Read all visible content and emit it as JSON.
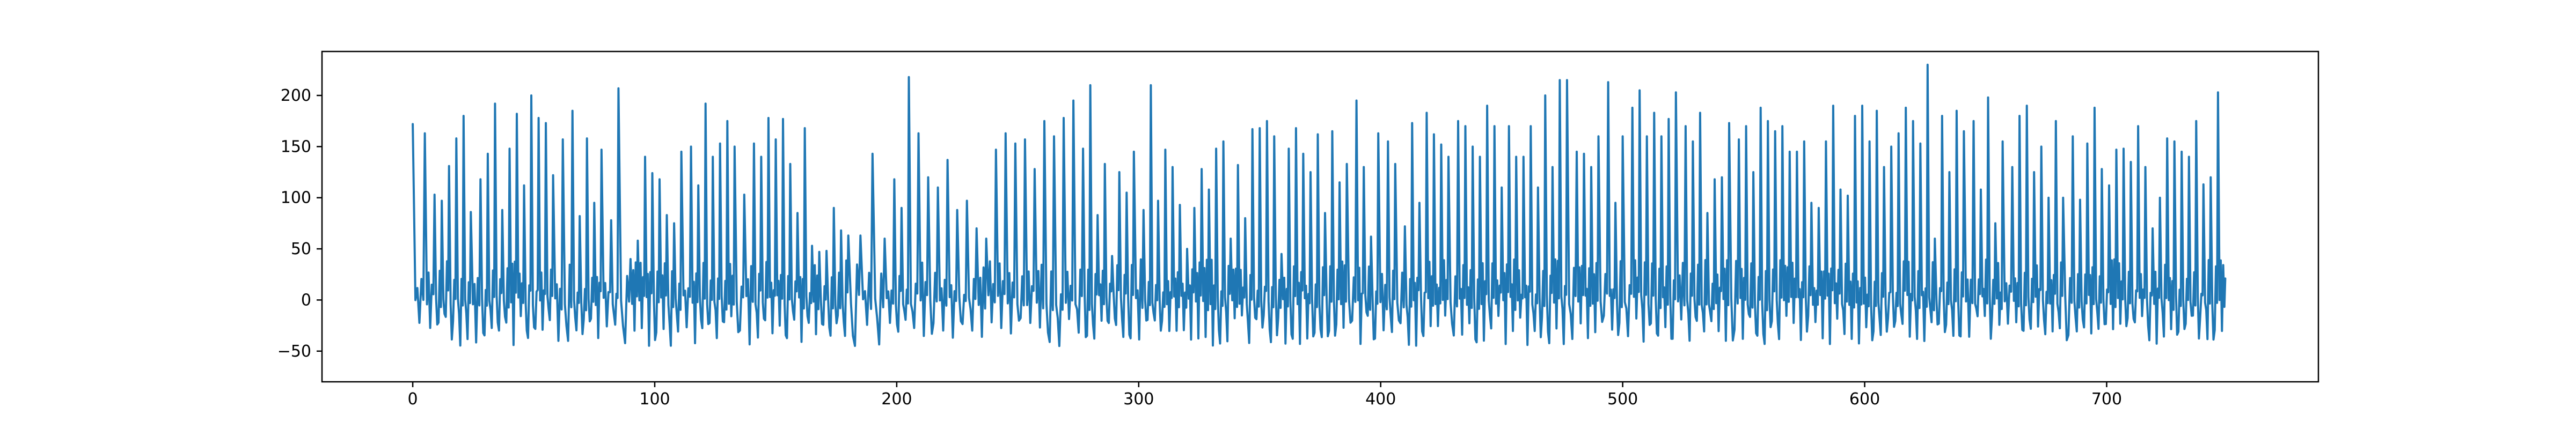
{
  "chart_data": {
    "type": "line",
    "title": "",
    "xlabel": "",
    "ylabel": "",
    "xlim": [
      -37.5,
      787.5
    ],
    "ylim": [
      -80,
      243
    ],
    "x_ticks": [
      0,
      100,
      200,
      300,
      400,
      500,
      600,
      700
    ],
    "y_ticks": [
      -50,
      0,
      50,
      100,
      150,
      200
    ],
    "x_tick_labels": [
      "0",
      "100",
      "200",
      "300",
      "400",
      "500",
      "600",
      "700"
    ],
    "y_tick_labels": [
      "−50",
      "0",
      "50",
      "100",
      "150",
      "200"
    ],
    "grid": false,
    "legend": "none",
    "series": [
      {
        "color": "#1f77b4",
        "peaks": [
          [
            0,
            172
          ],
          [
            5,
            163
          ],
          [
            9,
            103
          ],
          [
            12,
            97
          ],
          [
            15,
            131
          ],
          [
            18,
            158
          ],
          [
            21,
            180
          ],
          [
            24,
            86
          ],
          [
            28,
            118
          ],
          [
            31,
            143
          ],
          [
            34,
            192
          ],
          [
            37,
            88
          ],
          [
            40,
            148
          ],
          [
            43,
            182
          ],
          [
            46,
            112
          ],
          [
            49,
            200
          ],
          [
            52,
            178
          ],
          [
            55,
            173
          ],
          [
            58,
            122
          ],
          [
            62,
            157
          ],
          [
            66,
            185
          ],
          [
            69,
            82
          ],
          [
            72,
            158
          ],
          [
            75,
            95
          ],
          [
            78,
            147
          ],
          [
            82,
            78
          ],
          [
            85,
            207
          ],
          [
            90,
            40
          ],
          [
            93,
            58
          ],
          [
            96,
            140
          ],
          [
            99,
            124
          ],
          [
            102,
            118
          ],
          [
            105,
            83
          ],
          [
            108,
            75
          ],
          [
            111,
            145
          ],
          [
            115,
            150
          ],
          [
            118,
            112
          ],
          [
            121,
            192
          ],
          [
            124,
            140
          ],
          [
            127,
            153
          ],
          [
            130,
            175
          ],
          [
            133,
            150
          ],
          [
            137,
            103
          ],
          [
            141,
            153
          ],
          [
            144,
            140
          ],
          [
            147,
            178
          ],
          [
            150,
            157
          ],
          [
            153,
            177
          ],
          [
            156,
            133
          ],
          [
            159,
            85
          ],
          [
            162,
            168
          ],
          [
            165,
            53
          ],
          [
            168,
            47
          ],
          [
            171,
            48
          ],
          [
            174,
            90
          ],
          [
            177,
            68
          ],
          [
            180,
            63
          ],
          [
            185,
            63
          ],
          [
            190,
            143
          ],
          [
            195,
            60
          ],
          [
            199,
            118
          ],
          [
            202,
            90
          ],
          [
            205,
            218
          ],
          [
            209,
            163
          ],
          [
            213,
            120
          ],
          [
            217,
            110
          ],
          [
            221,
            137
          ],
          [
            225,
            88
          ],
          [
            229,
            97
          ],
          [
            233,
            70
          ],
          [
            237,
            60
          ],
          [
            241,
            147
          ],
          [
            245,
            163
          ],
          [
            249,
            153
          ],
          [
            253,
            157
          ],
          [
            257,
            128
          ],
          [
            261,
            175
          ],
          [
            265,
            160
          ],
          [
            269,
            178
          ],
          [
            273,
            195
          ],
          [
            277,
            148
          ],
          [
            280,
            210
          ],
          [
            283,
            83
          ],
          [
            286,
            133
          ],
          [
            289,
            43
          ],
          [
            292,
            125
          ],
          [
            295,
            105
          ],
          [
            298,
            145
          ],
          [
            302,
            88
          ],
          [
            305,
            210
          ],
          [
            308,
            97
          ],
          [
            311,
            147
          ],
          [
            314,
            130
          ],
          [
            317,
            93
          ],
          [
            320,
            50
          ],
          [
            323,
            90
          ],
          [
            326,
            128
          ],
          [
            329,
            108
          ],
          [
            332,
            148
          ],
          [
            335,
            155
          ],
          [
            338,
            60
          ],
          [
            341,
            132
          ],
          [
            344,
            80
          ],
          [
            347,
            167
          ],
          [
            350,
            168
          ],
          [
            353,
            175
          ],
          [
            356,
            160
          ],
          [
            359,
            45
          ],
          [
            362,
            148
          ],
          [
            365,
            168
          ],
          [
            368,
            143
          ],
          [
            371,
            125
          ],
          [
            374,
            162
          ],
          [
            377,
            85
          ],
          [
            380,
            165
          ],
          [
            383,
            115
          ],
          [
            386,
            133
          ],
          [
            390,
            195
          ],
          [
            393,
            130
          ],
          [
            396,
            62
          ],
          [
            399,
            163
          ],
          [
            403,
            155
          ],
          [
            406,
            133
          ],
          [
            410,
            72
          ],
          [
            413,
            173
          ],
          [
            416,
            95
          ],
          [
            419,
            183
          ],
          [
            422,
            162
          ],
          [
            425,
            152
          ],
          [
            428,
            140
          ],
          [
            432,
            175
          ],
          [
            435,
            170
          ],
          [
            438,
            150
          ],
          [
            441,
            140
          ],
          [
            444,
            190
          ],
          [
            447,
            170
          ],
          [
            450,
            110
          ],
          [
            453,
            170
          ],
          [
            456,
            140
          ],
          [
            459,
            140
          ],
          [
            462,
            170
          ],
          [
            465,
            110
          ],
          [
            468,
            200
          ],
          [
            471,
            130
          ],
          [
            474,
            215
          ],
          [
            477,
            215
          ],
          [
            481,
            145
          ],
          [
            484,
            143
          ],
          [
            487,
            130
          ],
          [
            490,
            160
          ],
          [
            494,
            213
          ],
          [
            497,
            95
          ],
          [
            500,
            160
          ],
          [
            504,
            188
          ],
          [
            507,
            205
          ],
          [
            510,
            160
          ],
          [
            513,
            183
          ],
          [
            516,
            160
          ],
          [
            519,
            177
          ],
          [
            522,
            203
          ],
          [
            526,
            170
          ],
          [
            529,
            155
          ],
          [
            532,
            183
          ],
          [
            535,
            85
          ],
          [
            538,
            118
          ],
          [
            541,
            120
          ],
          [
            544,
            173
          ],
          [
            548,
            157
          ],
          [
            551,
            170
          ],
          [
            554,
            125
          ],
          [
            557,
            188
          ],
          [
            560,
            175
          ],
          [
            563,
            165
          ],
          [
            566,
            170
          ],
          [
            569,
            145
          ],
          [
            572,
            145
          ],
          [
            575,
            155
          ],
          [
            578,
            95
          ],
          [
            581,
            90
          ],
          [
            584,
            155
          ],
          [
            587,
            190
          ],
          [
            590,
            108
          ],
          [
            593,
            102
          ],
          [
            596,
            180
          ],
          [
            599,
            190
          ],
          [
            602,
            155
          ],
          [
            605,
            185
          ],
          [
            608,
            130
          ],
          [
            611,
            150
          ],
          [
            614,
            163
          ],
          [
            617,
            188
          ],
          [
            620,
            175
          ],
          [
            623,
            153
          ],
          [
            626,
            230
          ],
          [
            629,
            60
          ],
          [
            632,
            180
          ],
          [
            635,
            125
          ],
          [
            638,
            185
          ],
          [
            641,
            165
          ],
          [
            645,
            175
          ],
          [
            648,
            108
          ],
          [
            651,
            198
          ],
          [
            654,
            75
          ],
          [
            657,
            155
          ],
          [
            661,
            130
          ],
          [
            664,
            180
          ],
          [
            667,
            190
          ],
          [
            670,
            125
          ],
          [
            673,
            150
          ],
          [
            676,
            100
          ],
          [
            679,
            175
          ],
          [
            682,
            100
          ],
          [
            686,
            160
          ],
          [
            689,
            98
          ],
          [
            692,
            153
          ],
          [
            695,
            188
          ],
          [
            698,
            128
          ],
          [
            701,
            112
          ],
          [
            704,
            147
          ],
          [
            707,
            148
          ],
          [
            710,
            135
          ],
          [
            713,
            170
          ],
          [
            716,
            130
          ],
          [
            719,
            70
          ],
          [
            722,
            100
          ],
          [
            725,
            158
          ],
          [
            728,
            155
          ],
          [
            731,
            145
          ],
          [
            734,
            140
          ],
          [
            737,
            175
          ],
          [
            740,
            113
          ],
          [
            743,
            120
          ],
          [
            746,
            203
          ],
          [
            749,
            21
          ]
        ]
      }
    ]
  }
}
